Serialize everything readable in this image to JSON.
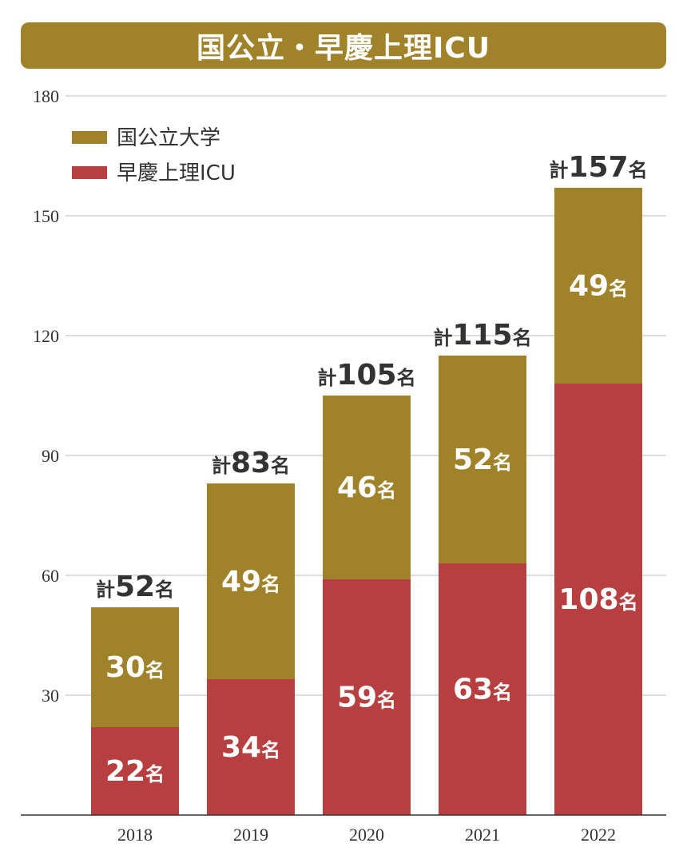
{
  "chart_data": {
    "type": "bar",
    "stacked": true,
    "title": "国公立・早慶上理ICU",
    "categories": [
      "2018",
      "2019",
      "2020",
      "2021",
      "2022"
    ],
    "series": [
      {
        "name": "早慶上理ICU",
        "values": [
          22,
          34,
          59,
          63,
          108
        ],
        "color": "#b73f3f"
      },
      {
        "name": "国公立大学",
        "values": [
          30,
          49,
          46,
          52,
          49
        ],
        "color": "#a0822a"
      }
    ],
    "totals": [
      52,
      83,
      105,
      115,
      157
    ],
    "yticks": [
      30,
      60,
      90,
      120,
      150,
      180
    ],
    "ylim": [
      0,
      180
    ],
    "unit": "名",
    "total_prefix": "計",
    "legend_position": "top-left",
    "grid": true
  },
  "colors": {
    "title_bg": "#a0822a",
    "grid": "#bbbbbb",
    "axis": "#333333"
  }
}
